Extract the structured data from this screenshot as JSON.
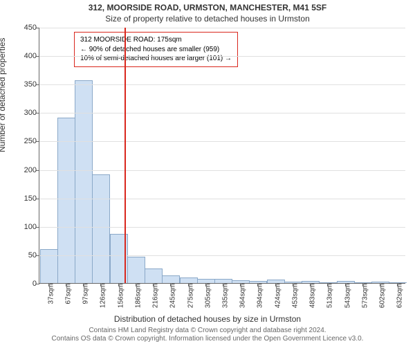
{
  "chart": {
    "type": "histogram",
    "title_main": "312, MOORSIDE ROAD, URMSTON, MANCHESTER, M41 5SF",
    "title_sub": "Size of property relative to detached houses in Urmston",
    "y_label": "Number of detached properties",
    "x_label": "Distribution of detached houses by size in Urmston",
    "background_color": "#ffffff",
    "grid_color": "#e0e0e0",
    "axis_color": "#666666",
    "bar_fill": "#cfe0f3",
    "bar_stroke": "#8aa8c8",
    "ylim": [
      0,
      450
    ],
    "ytick_step": 50,
    "yticks": [
      0,
      50,
      100,
      150,
      200,
      250,
      300,
      350,
      400,
      450
    ],
    "x_categories": [
      "37sqm",
      "67sqm",
      "97sqm",
      "126sqm",
      "156sqm",
      "186sqm",
      "216sqm",
      "245sqm",
      "275sqm",
      "305sqm",
      "335sqm",
      "364sqm",
      "394sqm",
      "424sqm",
      "453sqm",
      "483sqm",
      "513sqm",
      "543sqm",
      "573sqm",
      "602sqm",
      "632sqm"
    ],
    "values": [
      59,
      289,
      355,
      190,
      85,
      45,
      24,
      12,
      8,
      6,
      6,
      4,
      3,
      5,
      1,
      2,
      0,
      2,
      0,
      1,
      0
    ],
    "reference_line": {
      "x_value_sqm": 175,
      "x_min": 37,
      "x_max": 632,
      "color": "#d9261c"
    },
    "annotation": {
      "line1": "312 MOORSIDE ROAD: 175sqm",
      "line2": "← 90% of detached houses are smaller (959)",
      "line3": "10% of semi-detached houses are larger (101) →",
      "border_color": "#d9261c",
      "bg_color": "#ffffff",
      "font_size": 10
    },
    "attribution_line1": "Contains HM Land Registry data © Crown copyright and database right 2024.",
    "attribution_line2": "Contains OS data © Crown copyright. Information licensed under the Open Government Licence v3.0."
  }
}
